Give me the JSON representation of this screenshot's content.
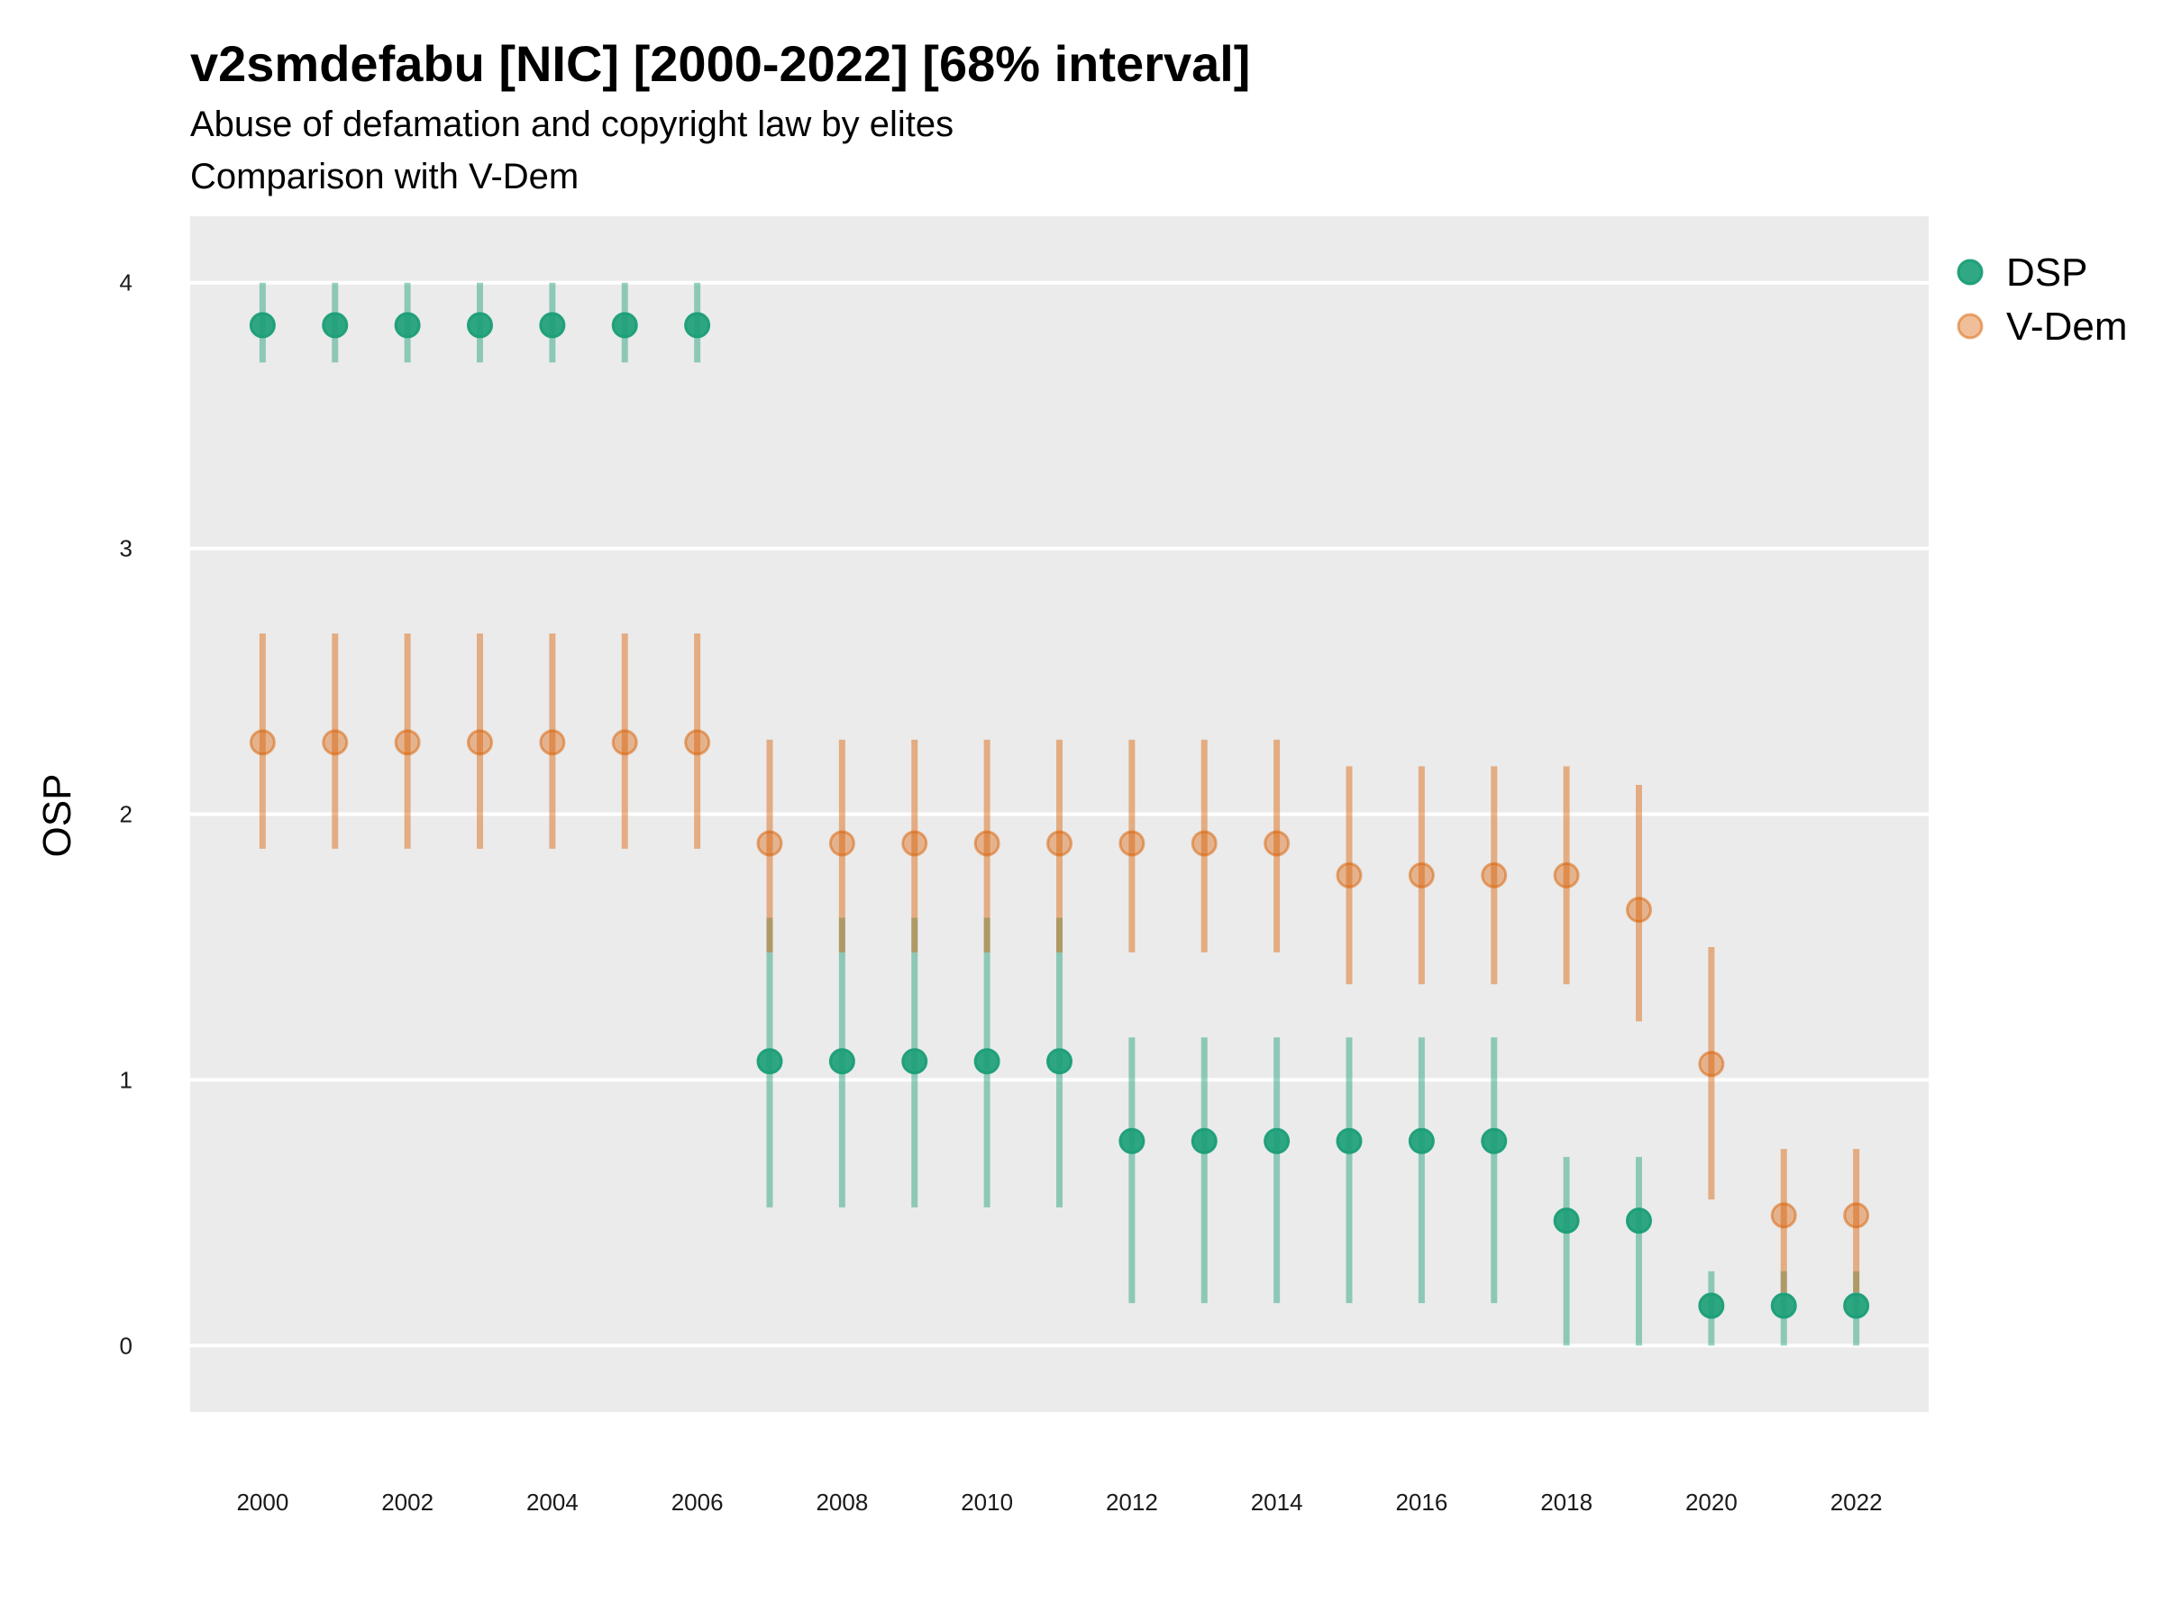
{
  "header": {
    "title": "v2smdefabu [NIC] [2000-2022] [68% interval]",
    "subtitle_line1": "Abuse of defamation and copyright law by elites",
    "subtitle_line2": "Comparison with V-Dem"
  },
  "chart_data": {
    "type": "scatter",
    "title": "v2smdefabu [NIC] [2000-2022] [68% interval]",
    "subtitle": "Abuse of defamation and copyright law by elites / Comparison with V-Dem",
    "xlabel": "",
    "ylabel": "OSP",
    "xlim": [
      1999,
      2023
    ],
    "ylim": [
      -0.25,
      4.25
    ],
    "x_ticks": [
      2000,
      2002,
      2004,
      2006,
      2008,
      2010,
      2012,
      2014,
      2016,
      2018,
      2020,
      2022
    ],
    "y_ticks": [
      0,
      1,
      2,
      3,
      4
    ],
    "grid": true,
    "legend_position": "right",
    "x": [
      2000,
      2001,
      2002,
      2003,
      2004,
      2005,
      2006,
      2007,
      2008,
      2009,
      2010,
      2011,
      2012,
      2013,
      2014,
      2015,
      2016,
      2017,
      2018,
      2019,
      2020,
      2021,
      2022
    ],
    "series": [
      {
        "name": "DSP",
        "color": "#1b9e77",
        "values": [
          3.84,
          3.84,
          3.84,
          3.84,
          3.84,
          3.84,
          3.84,
          1.07,
          1.07,
          1.07,
          1.07,
          1.07,
          0.77,
          0.77,
          0.77,
          0.77,
          0.77,
          0.77,
          0.47,
          0.47,
          0.15,
          0.15,
          0.15
        ],
        "lower": [
          3.7,
          3.7,
          3.7,
          3.7,
          3.7,
          3.7,
          3.7,
          0.52,
          0.52,
          0.52,
          0.52,
          0.52,
          0.16,
          0.16,
          0.16,
          0.16,
          0.16,
          0.16,
          0.0,
          0.0,
          0.0,
          0.0,
          0.0
        ],
        "upper": [
          4.0,
          4.0,
          4.0,
          4.0,
          4.0,
          4.0,
          4.0,
          1.61,
          1.61,
          1.61,
          1.61,
          1.61,
          1.16,
          1.16,
          1.16,
          1.16,
          1.16,
          1.16,
          0.71,
          0.71,
          0.28,
          0.28,
          0.28
        ]
      },
      {
        "name": "V-Dem",
        "color": "#d95f02",
        "values": [
          2.27,
          2.27,
          2.27,
          2.27,
          2.27,
          2.27,
          2.27,
          1.89,
          1.89,
          1.89,
          1.89,
          1.89,
          1.89,
          1.89,
          1.89,
          1.77,
          1.77,
          1.77,
          1.77,
          1.64,
          1.06,
          0.49,
          0.49
        ],
        "lower": [
          1.87,
          1.87,
          1.87,
          1.87,
          1.87,
          1.87,
          1.87,
          1.48,
          1.48,
          1.48,
          1.48,
          1.48,
          1.48,
          1.48,
          1.48,
          1.36,
          1.36,
          1.36,
          1.36,
          1.22,
          0.55,
          0.2,
          0.2
        ],
        "upper": [
          2.68,
          2.68,
          2.68,
          2.68,
          2.68,
          2.68,
          2.68,
          2.28,
          2.28,
          2.28,
          2.28,
          2.28,
          2.28,
          2.28,
          2.28,
          2.18,
          2.18,
          2.18,
          2.18,
          2.11,
          1.5,
          0.74,
          0.74
        ]
      }
    ]
  }
}
